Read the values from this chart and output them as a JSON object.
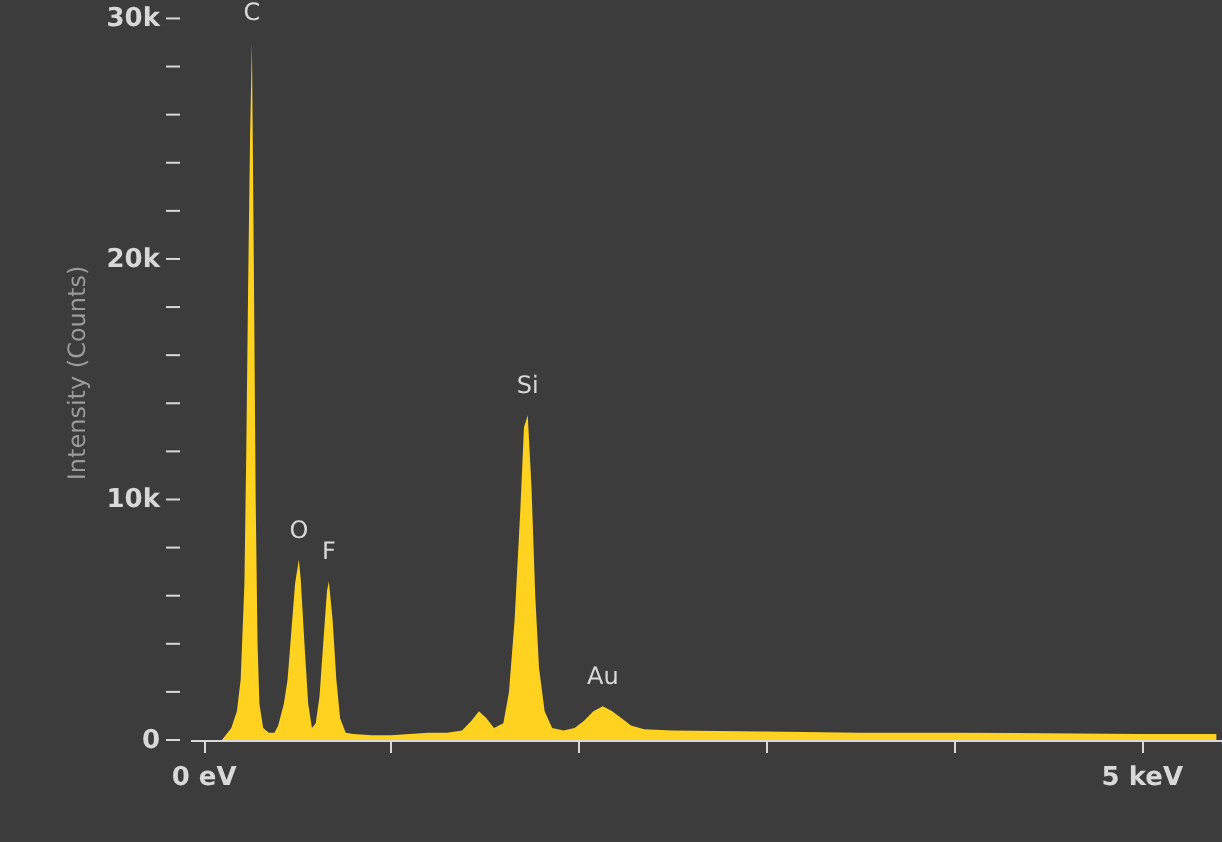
{
  "chart_data": {
    "type": "area",
    "ylabel": "Intensity (Counts)",
    "x": [
      0.1,
      0.12,
      0.15,
      0.18,
      0.2,
      0.22,
      0.23,
      0.24,
      0.25,
      0.26,
      0.27,
      0.28,
      0.29,
      0.3,
      0.32,
      0.35,
      0.38,
      0.4,
      0.43,
      0.45,
      0.47,
      0.49,
      0.51,
      0.52,
      0.54,
      0.56,
      0.58,
      0.6,
      0.62,
      0.64,
      0.66,
      0.67,
      0.69,
      0.71,
      0.73,
      0.76,
      0.8,
      0.9,
      1.0,
      1.1,
      1.2,
      1.3,
      1.38,
      1.43,
      1.47,
      1.51,
      1.55,
      1.6,
      1.63,
      1.66,
      1.69,
      1.71,
      1.73,
      1.75,
      1.77,
      1.79,
      1.82,
      1.86,
      1.92,
      1.98,
      2.03,
      2.08,
      2.13,
      2.18,
      2.23,
      2.28,
      2.35,
      2.5,
      3.0,
      3.5,
      4.0,
      4.5,
      5.0,
      5.4
    ],
    "series": [
      {
        "color": "#ffd21f",
        "values": [
          0,
          200,
          500,
          1200,
          2500,
          6500,
          12000,
          19000,
          25000,
          29000,
          20000,
          10000,
          4000,
          1500,
          500,
          300,
          300,
          600,
          1500,
          2500,
          4500,
          6500,
          7500,
          6700,
          4000,
          1500,
          500,
          700,
          1800,
          4000,
          6200,
          6600,
          5000,
          2500,
          900,
          300,
          250,
          200,
          200,
          250,
          300,
          300,
          400,
          800,
          1200,
          900,
          500,
          700,
          2000,
          5000,
          9500,
          13000,
          13500,
          10500,
          6000,
          3000,
          1200,
          500,
          400,
          500,
          800,
          1200,
          1400,
          1200,
          900,
          600,
          450,
          400,
          350,
          300,
          300,
          280,
          250,
          250
        ]
      }
    ],
    "annotations": [
      {
        "text": "C",
        "x": 0.26,
        "y": 29000
      },
      {
        "text": "O",
        "x": 0.51,
        "y": 7500
      },
      {
        "text": "F",
        "x": 0.67,
        "y": 6600
      },
      {
        "text": "Si",
        "x": 1.73,
        "y": 13500
      },
      {
        "text": "Au",
        "x": 2.13,
        "y": 1400
      }
    ],
    "xlim": [
      -0.07,
      5.43
    ],
    "xticks": [
      {
        "value": 0,
        "label": "0 eV"
      },
      {
        "value": 1,
        "label": null
      },
      {
        "value": 2,
        "label": null
      },
      {
        "value": 3,
        "label": null
      },
      {
        "value": 4,
        "label": null
      },
      {
        "value": 5,
        "label": "5 keV"
      }
    ],
    "ylim": [
      0,
      30600
    ],
    "yticks": [
      {
        "value": 0,
        "label": "0"
      },
      {
        "value": 2000,
        "label": null
      },
      {
        "value": 4000,
        "label": null
      },
      {
        "value": 6000,
        "label": null
      },
      {
        "value": 8000,
        "label": null
      },
      {
        "value": 10000,
        "label": "10k"
      },
      {
        "value": 12000,
        "label": null
      },
      {
        "value": 14000,
        "label": null
      },
      {
        "value": 16000,
        "label": null
      },
      {
        "value": 18000,
        "label": null
      },
      {
        "value": 20000,
        "label": "20k"
      },
      {
        "value": 22000,
        "label": null
      },
      {
        "value": 24000,
        "label": null
      },
      {
        "value": 26000,
        "label": null
      },
      {
        "value": 28000,
        "label": null
      },
      {
        "value": 30000,
        "label": "30k"
      }
    ],
    "grid": false
  }
}
